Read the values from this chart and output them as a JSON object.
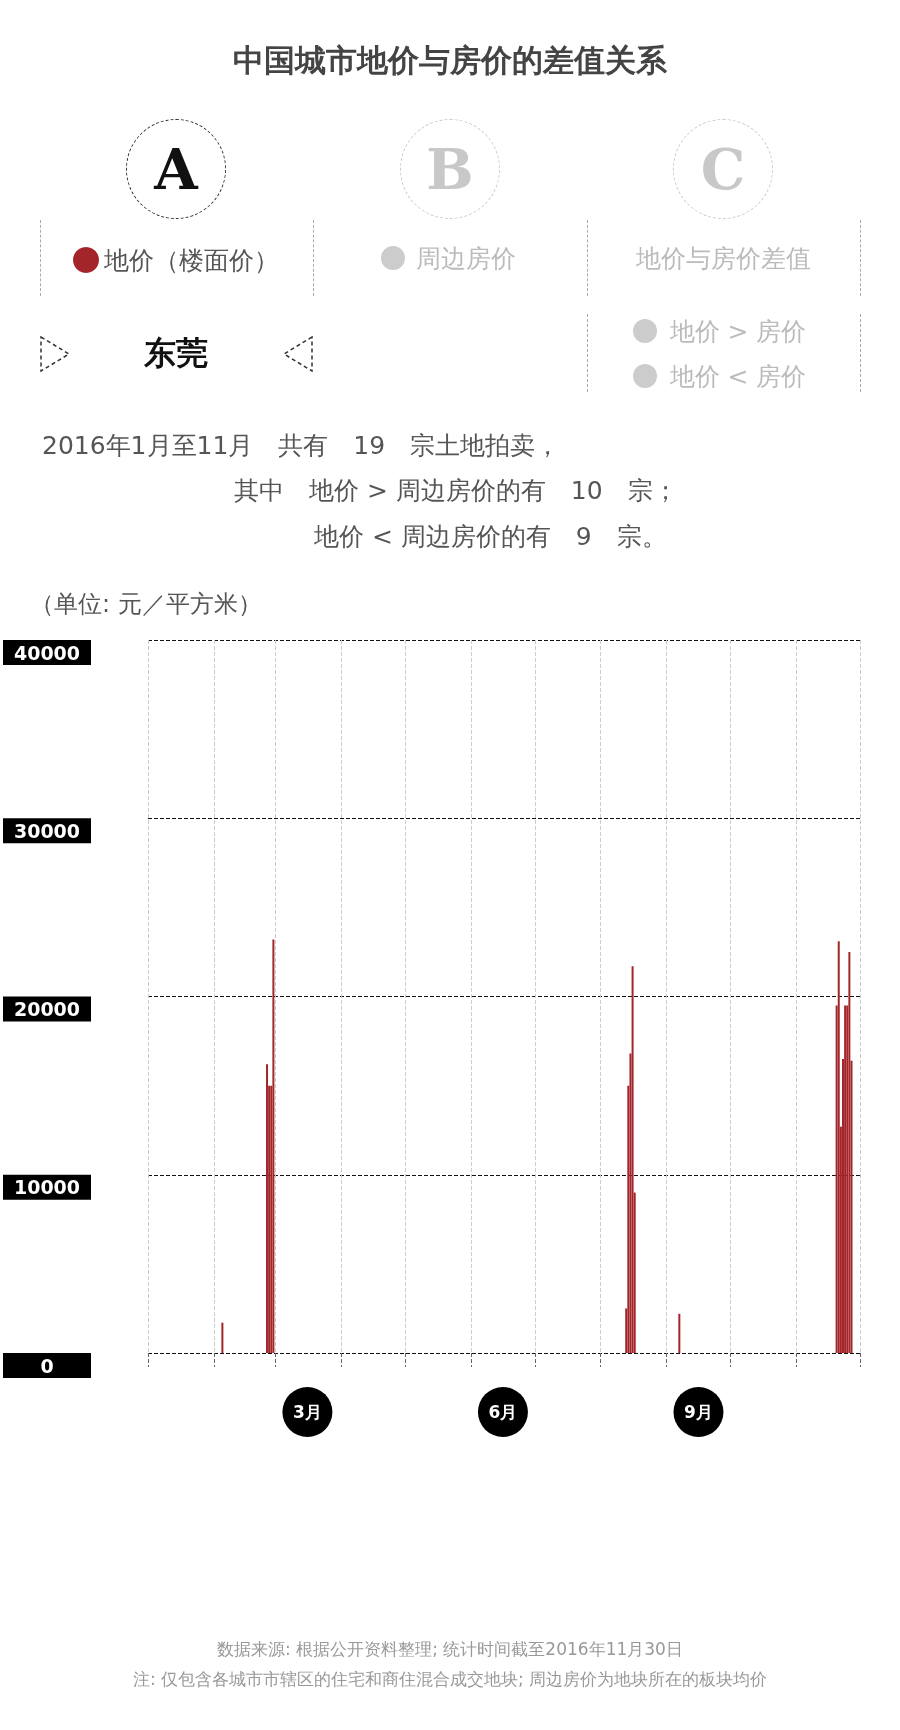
{
  "chart_data": {
    "type": "bar",
    "title": "中国城市地价与房价的差值关系",
    "ylabel": "（单位: 元／平方米）",
    "annotations": [
      "A",
      "B",
      "C",
      "周边房价",
      "地价与房价差值",
      "东莞",
      "地价 > 房价",
      "地价 < 房价",
      "2016年1月至11月　共有　19　宗土地拍卖，",
      "其中　地价 > 周边房价的有　10　宗；",
      "地价 < 周边房价的有　9　宗。",
      "数据来源: 根据公开资料整理; 统计时间截至2016年11月30日",
      "注: 仅包含各城市市辖区的住宅和商住混合成交地块; 周边房价为地块所在的板块均价"
    ],
    "series": [
      {
        "name": "地价（楼面价）",
        "color": "#a3252a",
        "x": [
          "2016-02-05",
          "2016-02-26",
          "2016-02-27",
          "2016-02-28",
          "2016-02-29",
          "2016-08-13",
          "2016-08-14",
          "2016-08-15",
          "2016-08-16",
          "2016-08-17",
          "2016-09-07",
          "2016-11-20",
          "2016-11-21",
          "2016-11-22",
          "2016-11-23",
          "2016-11-24",
          "2016-11-25",
          "2016-11-26",
          "2016-11-27"
        ],
        "values": [
          1700,
          16200,
          15000,
          15000,
          23200,
          2500,
          15000,
          16800,
          21700,
          9000,
          2200,
          19500,
          23100,
          12700,
          16500,
          19500,
          19500,
          22500,
          16400
        ]
      }
    ],
    "xlim": [
      "2016-01-01",
      "2016-12-01"
    ],
    "xticks": [
      {
        "value": "2016-01-01",
        "label": null
      },
      {
        "value": "2016-02-01",
        "label": null
      },
      {
        "value": "2016-03-01",
        "label": null
      },
      {
        "value": "2016-03-16",
        "label": "3月"
      },
      {
        "value": "2016-04-01",
        "label": null
      },
      {
        "value": "2016-05-01",
        "label": null
      },
      {
        "value": "2016-06-01",
        "label": null
      },
      {
        "value": "2016-06-16",
        "label": "6月"
      },
      {
        "value": "2016-07-01",
        "label": null
      },
      {
        "value": "2016-08-01",
        "label": null
      },
      {
        "value": "2016-09-01",
        "label": null
      },
      {
        "value": "2016-09-16",
        "label": "9月"
      },
      {
        "value": "2016-10-01",
        "label": null
      },
      {
        "value": "2016-11-01",
        "label": null
      },
      {
        "value": "2016-12-01",
        "label": null
      }
    ],
    "ylim": [
      0,
      40000
    ],
    "yticks": [
      0,
      10000,
      20000,
      30000,
      40000
    ],
    "grid": true,
    "legend": "top left"
  }
}
